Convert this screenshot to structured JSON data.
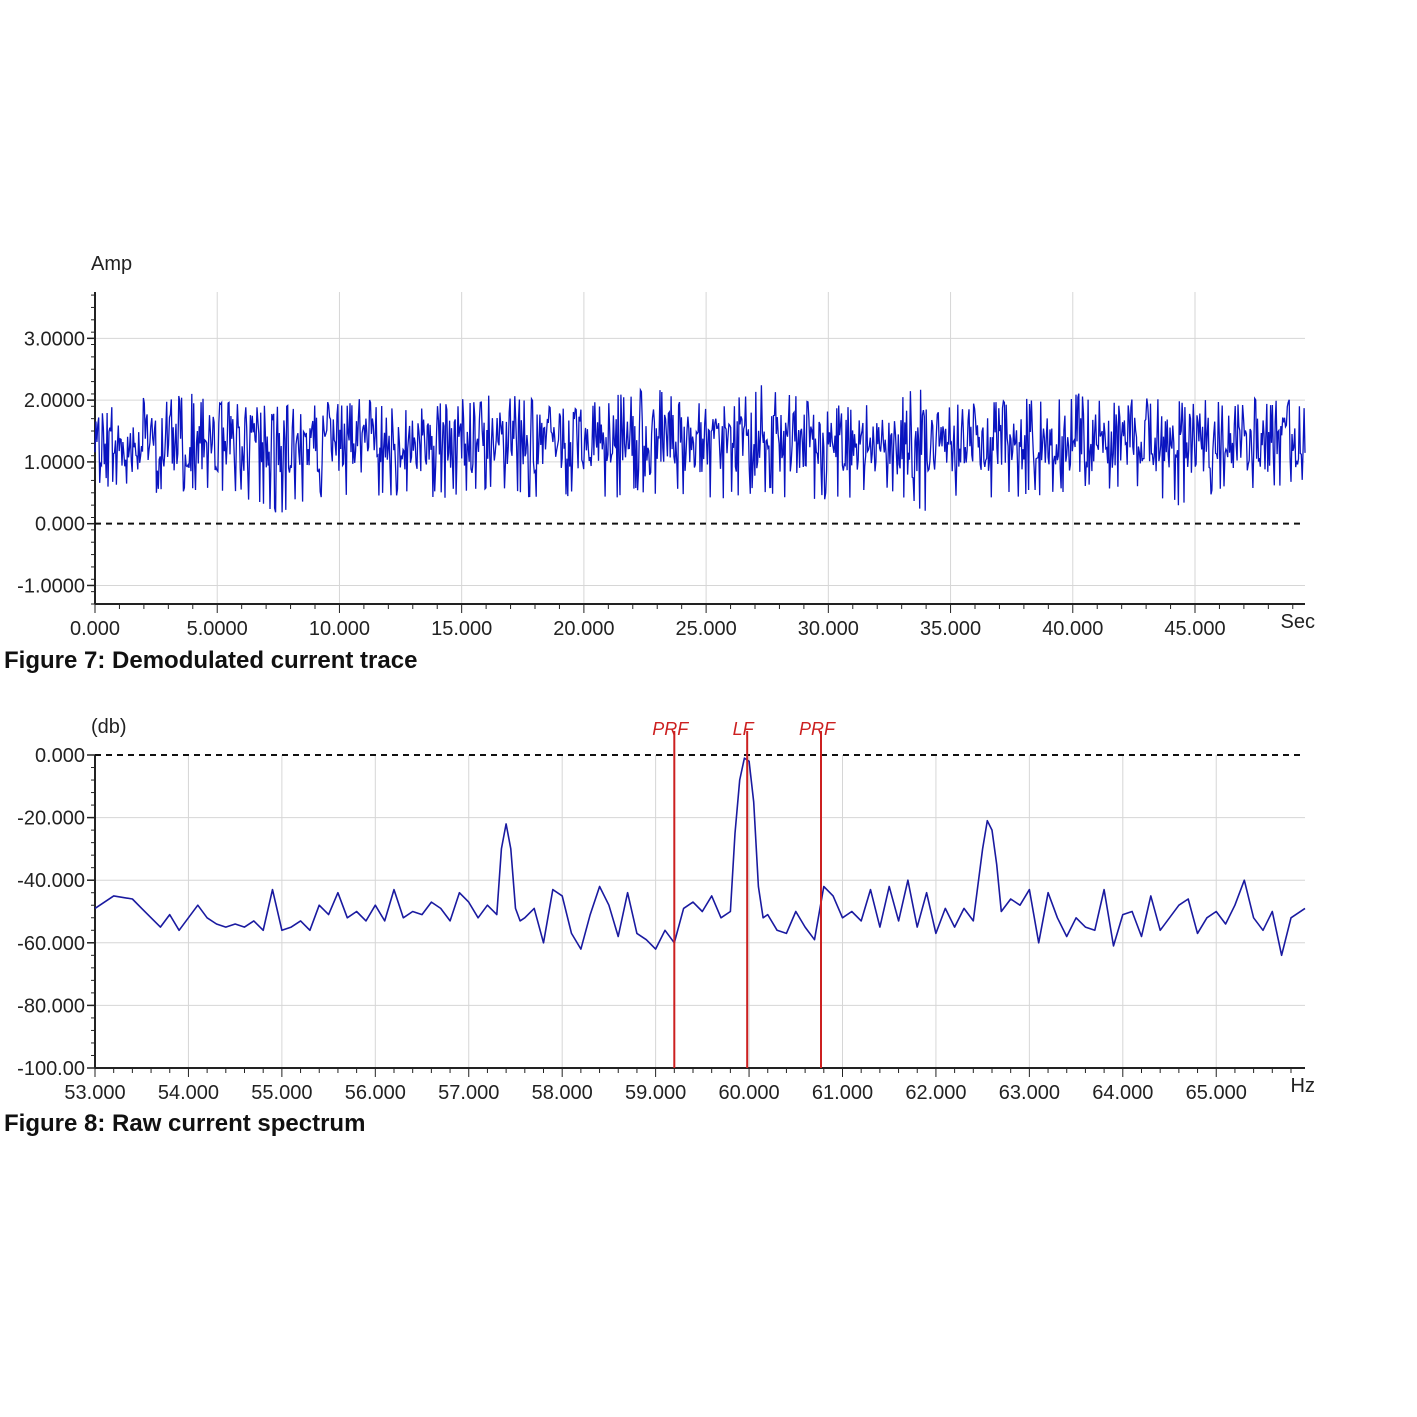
{
  "colors": {
    "trace": "#0a14c0",
    "marker": "#cc2020",
    "grid": "#d6d6d6",
    "axis": "#222222"
  },
  "chart_data": [
    {
      "type": "line",
      "caption": "Figure 7: Demodulated current trace",
      "ylabel": "Amp",
      "xunit": "Sec",
      "xlim": [
        0,
        49.5
      ],
      "ylim": [
        -1.3,
        3.75
      ],
      "xticks": [
        0,
        5,
        10,
        15,
        20,
        25,
        30,
        35,
        40,
        45
      ],
      "xtick_labels": [
        "0.000",
        "5.0000",
        "10.000",
        "15.000",
        "20.000",
        "25.000",
        "30.000",
        "35.000",
        "40.000",
        "45.000"
      ],
      "yticks": [
        3,
        2,
        1,
        0,
        -1
      ],
      "ytick_labels": [
        "3.0000",
        "2.0000",
        "1.0000",
        "0.000",
        "-1.0000"
      ],
      "reference_line": 0,
      "grid": true,
      "series": [
        {
          "style": "noise-band",
          "x": [
            0,
            2,
            4,
            6,
            7.3,
            9,
            11,
            12.5,
            14,
            16.8,
            18,
            19.5,
            21,
            23,
            24,
            26,
            27.5,
            29,
            31,
            32.5,
            34,
            35,
            37,
            38.5,
            40,
            42,
            43,
            44,
            46,
            48,
            49.5
          ],
          "y_max": [
            1.85,
            2.1,
            2.1,
            1.95,
            1.9,
            1.95,
            2.05,
            1.9,
            1.95,
            2.2,
            2.0,
            1.9,
            2.05,
            2.3,
            2.0,
            2.0,
            2.3,
            2.0,
            1.9,
            2.05,
            2.25,
            1.95,
            2.0,
            2.05,
            2.15,
            2.0,
            2.05,
            2.05,
            2.0,
            2.05,
            2.0
          ],
          "y_min": [
            0.65,
            0.45,
            0.5,
            0.45,
            0.1,
            0.4,
            0.45,
            0.45,
            0.4,
            0.5,
            0.4,
            0.45,
            0.4,
            0.45,
            0.45,
            0.4,
            0.45,
            0.35,
            0.4,
            0.45,
            0.2,
            0.45,
            0.4,
            0.45,
            0.5,
            0.45,
            0.5,
            0.25,
            0.45,
            0.5,
            0.7
          ],
          "center": 1.3
        }
      ]
    },
    {
      "type": "line",
      "caption": "Figure 8: Raw current spectrum",
      "ylabel": "(db)",
      "xunit": "Hz",
      "xlim": [
        53,
        65.95
      ],
      "ylim": [
        -100,
        0
      ],
      "xticks": [
        53,
        54,
        55,
        56,
        57,
        58,
        59,
        60,
        61,
        62,
        63,
        64,
        65
      ],
      "xtick_labels": [
        "53.000",
        "54.000",
        "55.000",
        "56.000",
        "57.000",
        "58.000",
        "59.000",
        "60.000",
        "61.000",
        "62.000",
        "63.000",
        "64.000",
        "65.000"
      ],
      "yticks": [
        0,
        -20,
        -40,
        -60,
        -80,
        -100
      ],
      "ytick_labels": [
        "0.000",
        "-20.000",
        "-40.000",
        "-60.000",
        "-80.000",
        "-100.00"
      ],
      "reference_line": 0,
      "grid": true,
      "markers": [
        {
          "label": "PRF",
          "x": 59.2
        },
        {
          "label": "LF",
          "x": 59.98
        },
        {
          "label": "PRF",
          "x": 60.77
        }
      ],
      "series": [
        {
          "x": [
            53.0,
            53.2,
            53.4,
            53.5,
            53.6,
            53.7,
            53.8,
            53.9,
            54.0,
            54.1,
            54.2,
            54.3,
            54.4,
            54.5,
            54.6,
            54.7,
            54.8,
            54.9,
            55.0,
            55.1,
            55.2,
            55.3,
            55.4,
            55.5,
            55.6,
            55.7,
            55.8,
            55.9,
            56.0,
            56.1,
            56.2,
            56.3,
            56.4,
            56.5,
            56.6,
            56.7,
            56.8,
            56.9,
            57.0,
            57.1,
            57.2,
            57.3,
            57.35,
            57.4,
            57.45,
            57.5,
            57.55,
            57.6,
            57.7,
            57.8,
            57.9,
            58.0,
            58.1,
            58.2,
            58.3,
            58.4,
            58.5,
            58.6,
            58.7,
            58.8,
            58.9,
            59.0,
            59.1,
            59.2,
            59.3,
            59.4,
            59.5,
            59.6,
            59.7,
            59.8,
            59.85,
            59.9,
            59.95,
            60.0,
            60.05,
            60.1,
            60.15,
            60.2,
            60.3,
            60.4,
            60.5,
            60.6,
            60.7,
            60.8,
            60.9,
            61.0,
            61.1,
            61.2,
            61.3,
            61.4,
            61.5,
            61.6,
            61.7,
            61.8,
            61.9,
            62.0,
            62.1,
            62.2,
            62.3,
            62.4,
            62.5,
            62.55,
            62.6,
            62.65,
            62.7,
            62.8,
            62.9,
            63.0,
            63.1,
            63.2,
            63.3,
            63.4,
            63.5,
            63.6,
            63.7,
            63.8,
            63.9,
            64.0,
            64.1,
            64.2,
            64.3,
            64.4,
            64.5,
            64.6,
            64.7,
            64.8,
            64.9,
            65.0,
            65.1,
            65.2,
            65.3,
            65.4,
            65.5,
            65.6,
            65.7,
            65.8,
            65.95
          ],
          "y": [
            -49,
            -45,
            -46,
            -49,
            -52,
            -55,
            -51,
            -56,
            -52,
            -48,
            -52,
            -54,
            -55,
            -54,
            -55,
            -53,
            -56,
            -43,
            -56,
            -55,
            -53,
            -56,
            -48,
            -51,
            -44,
            -52,
            -50,
            -53,
            -48,
            -53,
            -43,
            -52,
            -50,
            -51,
            -47,
            -49,
            -53,
            -44,
            -47,
            -52,
            -48,
            -51,
            -30,
            -22,
            -30,
            -49,
            -53,
            -52,
            -49,
            -60,
            -43,
            -45,
            -57,
            -62,
            -51,
            -42,
            -48,
            -58,
            -44,
            -57,
            -59,
            -62,
            -56,
            -60,
            -49,
            -47,
            -50,
            -45,
            -52,
            -50,
            -25,
            -8,
            -1,
            -2,
            -15,
            -42,
            -52,
            -51,
            -56,
            -57,
            -50,
            -55,
            -59,
            -42,
            -45,
            -52,
            -50,
            -53,
            -43,
            -55,
            -42,
            -53,
            -40,
            -55,
            -44,
            -57,
            -49,
            -55,
            -49,
            -53,
            -30,
            -21,
            -24,
            -35,
            -50,
            -46,
            -48,
            -43,
            -60,
            -44,
            -52,
            -58,
            -52,
            -55,
            -56,
            -43,
            -61,
            -51,
            -50,
            -58,
            -45,
            -56,
            -52,
            -48,
            -46,
            -57,
            -52,
            -50,
            -54,
            -48,
            -40,
            -52,
            -56,
            -50,
            -64,
            -52,
            -49
          ]
        }
      ]
    }
  ]
}
